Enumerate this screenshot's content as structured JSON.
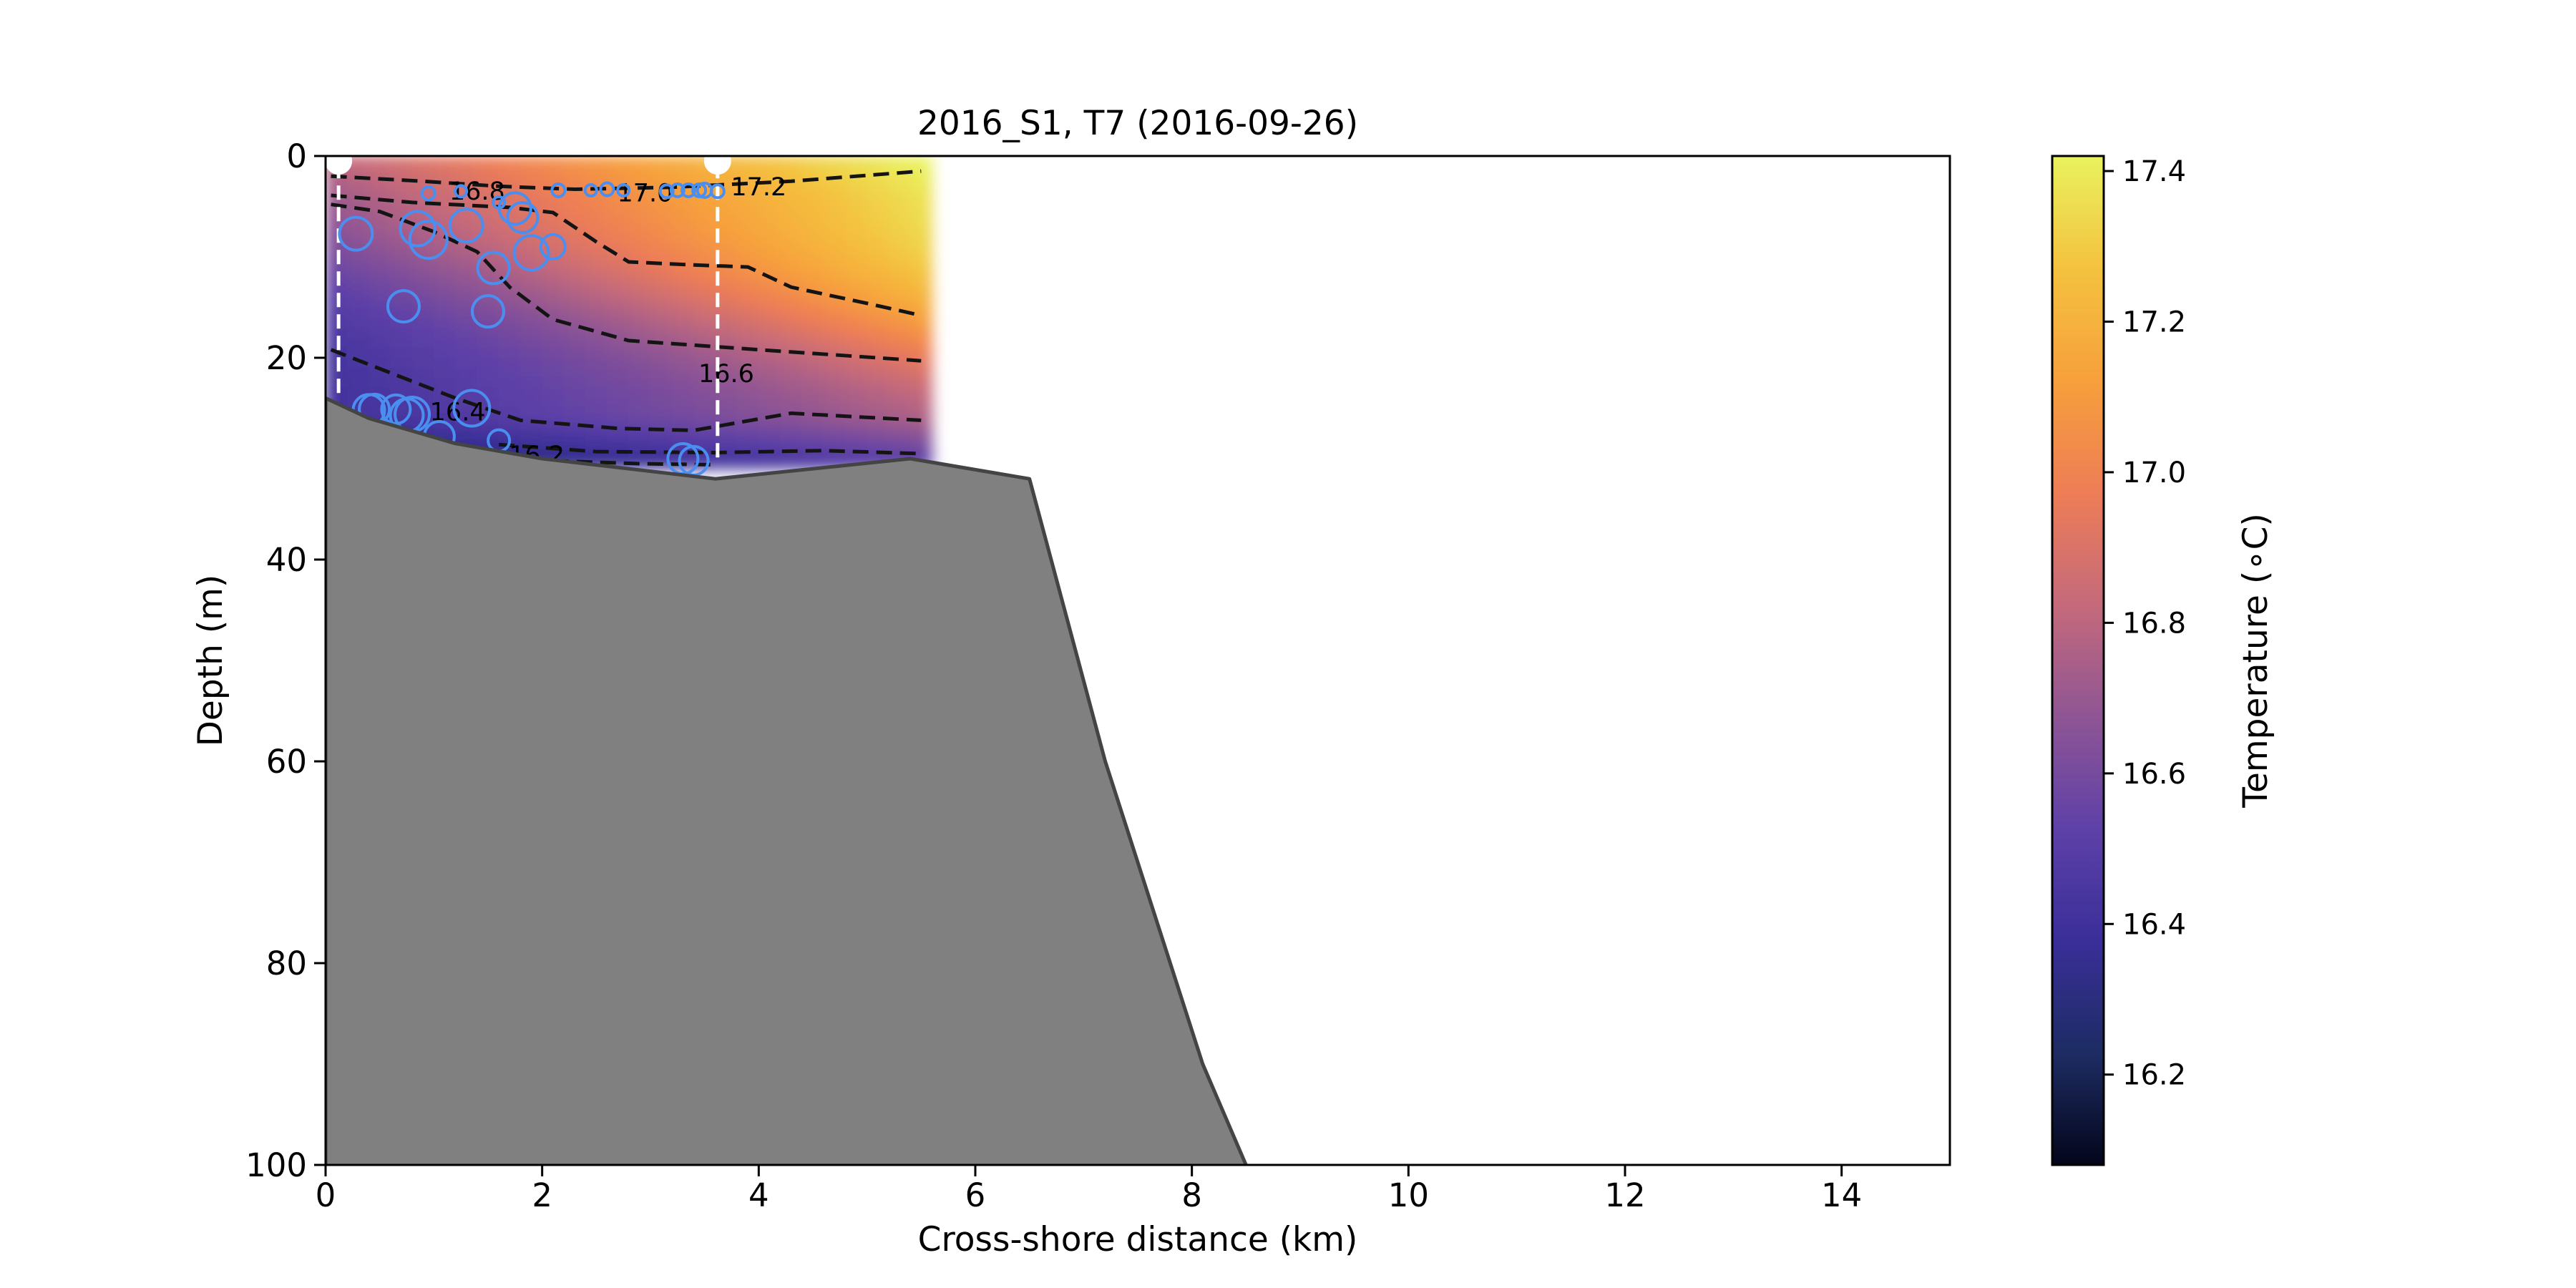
{
  "chart_data": {
    "type": "heatmap",
    "title": "2016_S1, T7 (2016-09-26)",
    "xlabel": "Cross-shore distance (km)",
    "ylabel": "Depth (m)",
    "xlim": [
      0,
      15
    ],
    "ylim": [
      100,
      0
    ],
    "xticks": [
      "0",
      "2",
      "4",
      "6",
      "8",
      "10",
      "12",
      "14"
    ],
    "yticks": [
      "0",
      "20",
      "40",
      "60",
      "80",
      "100"
    ],
    "colorbar": {
      "label": "Temperature (∘C)",
      "range": [
        16.08,
        17.42
      ],
      "ticks": [
        "16.2",
        "16.4",
        "16.6",
        "16.8",
        "17.0",
        "17.2",
        "17.4"
      ],
      "colormap": [
        "#03051a",
        "#1d2c63",
        "#3a2e99",
        "#5e41a8",
        "#8f5594",
        "#c56a7b",
        "#ee7d56",
        "#f7a03c",
        "#f4c23f",
        "#e9f25e"
      ]
    },
    "field_extent": {
      "x": [
        0,
        5.6
      ],
      "z": [
        0,
        31
      ]
    },
    "bathymetry": {
      "x": [
        0,
        0.4,
        1.2,
        2.0,
        3.6,
        5.4,
        6.5,
        7.2,
        8.1,
        8.5
      ],
      "depth": [
        24,
        26,
        28.5,
        30,
        32,
        30,
        32,
        60,
        90,
        100
      ],
      "color": "#808080"
    },
    "stations": [
      {
        "x": 0.12,
        "z_end": 24
      },
      {
        "x": 3.62,
        "z_end": 30
      }
    ],
    "contour_labels": [
      {
        "text": "16.8",
        "x": 1.4,
        "z": 3.6
      },
      {
        "text": "17.0",
        "x": 2.95,
        "z": 3.8
      },
      {
        "text": "17.2",
        "x": 4.0,
        "z": 3.2
      },
      {
        "text": "16.6",
        "x": 3.7,
        "z": 21.7
      },
      {
        "text": "16.4",
        "x": 1.22,
        "z": 25.5
      },
      {
        "text": "16.2",
        "x": 1.95,
        "z": 29.8
      }
    ],
    "observations": {
      "x": [
        0.95,
        1.25,
        1.6,
        2.15,
        2.45,
        2.6,
        2.75,
        3.15,
        3.25,
        3.35,
        3.45,
        3.5,
        3.62,
        0.28,
        0.85,
        0.95,
        1.3,
        1.75,
        1.82,
        1.9,
        2.1,
        1.55,
        0.72,
        1.5,
        0.4,
        0.45,
        0.65,
        0.75,
        0.8,
        1.05,
        1.6,
        1.35,
        3.3,
        3.4
      ],
      "z": [
        3.7,
        3.5,
        4.6,
        3.4,
        3.4,
        3.3,
        3.4,
        3.5,
        3.4,
        3.4,
        3.4,
        3.4,
        3.5,
        7.7,
        7.2,
        8.3,
        6.9,
        5.2,
        6.1,
        9.6,
        9.0,
        11.1,
        14.9,
        15.4,
        25.2,
        25.1,
        25.1,
        25.7,
        25.6,
        27.8,
        28.2,
        25.0,
        30.0,
        30.2
      ],
      "color": "#4a8ff0"
    }
  }
}
